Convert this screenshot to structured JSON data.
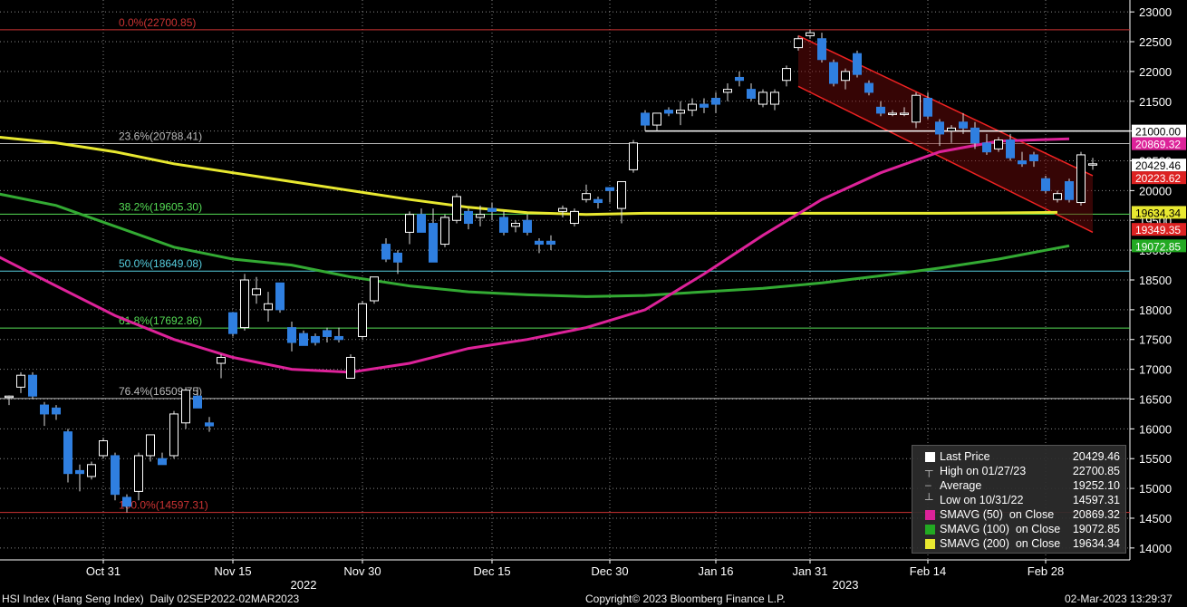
{
  "chart_data": {
    "type": "candlestick",
    "ylim": [
      13800,
      23200
    ],
    "yticks": [
      14000,
      14500,
      15000,
      15500,
      16000,
      16500,
      17000,
      17500,
      18000,
      18500,
      19000,
      19500,
      20000,
      20500,
      21000,
      21500,
      22000,
      22500,
      23000
    ],
    "ytick_labels": [
      "14000",
      "14500",
      "15000",
      "15500",
      "16000",
      "16500",
      "17000",
      "17500",
      "18000",
      "18500",
      "19000",
      "19500",
      "20000",
      "20500",
      "21000",
      "21500",
      "22000",
      "22500",
      "23000"
    ],
    "x_ticks": [
      {
        "label": "Oct 31",
        "i": 8
      },
      {
        "label": "Nov 15",
        "i": 19
      },
      {
        "label": "Nov 30",
        "i": 30
      },
      {
        "label": "Dec 15",
        "i": 41
      },
      {
        "label": "Dec 30",
        "i": 51
      },
      {
        "label": "Jan 16",
        "i": 60
      },
      {
        "label": "Jan 31",
        "i": 68
      },
      {
        "label": "Feb 14",
        "i": 78
      },
      {
        "label": "Feb 28",
        "i": 88
      }
    ],
    "x_year_labels": [
      {
        "label": "2022",
        "i": 25
      },
      {
        "label": "2023",
        "i": 71
      }
    ],
    "n_slots": 92,
    "candles": [
      {
        "o": 16550,
        "h": 16560,
        "l": 16400,
        "c": 16540,
        "up": true
      },
      {
        "o": 16700,
        "h": 16950,
        "l": 16600,
        "c": 16900,
        "up": true
      },
      {
        "o": 16900,
        "h": 16950,
        "l": 16500,
        "c": 16550,
        "up": false
      },
      {
        "o": 16400,
        "h": 16450,
        "l": 16050,
        "c": 16250,
        "up": false
      },
      {
        "o": 16350,
        "h": 16400,
        "l": 16150,
        "c": 16250,
        "up": false
      },
      {
        "o": 15950,
        "h": 16000,
        "l": 15100,
        "c": 15250,
        "up": false
      },
      {
        "o": 15300,
        "h": 15400,
        "l": 14950,
        "c": 15250,
        "up": false
      },
      {
        "o": 15200,
        "h": 15450,
        "l": 15150,
        "c": 15400,
        "up": true
      },
      {
        "o": 15550,
        "h": 15850,
        "l": 15500,
        "c": 15800,
        "up": true
      },
      {
        "o": 15550,
        "h": 15600,
        "l": 14800,
        "c": 14900,
        "up": false
      },
      {
        "o": 14850,
        "h": 14900,
        "l": 14597,
        "c": 14700,
        "up": false
      },
      {
        "o": 14950,
        "h": 15600,
        "l": 14800,
        "c": 15550,
        "up": true
      },
      {
        "o": 15550,
        "h": 15900,
        "l": 15450,
        "c": 15900,
        "up": true
      },
      {
        "o": 15500,
        "h": 15600,
        "l": 15400,
        "c": 15400,
        "up": false
      },
      {
        "o": 15550,
        "h": 16300,
        "l": 15500,
        "c": 16250,
        "up": true
      },
      {
        "o": 16100,
        "h": 16700,
        "l": 16000,
        "c": 16650,
        "up": true
      },
      {
        "o": 16550,
        "h": 16700,
        "l": 16350,
        "c": 16350,
        "up": false
      },
      {
        "o": 16100,
        "h": 16200,
        "l": 15950,
        "c": 16050,
        "up": false
      },
      {
        "o": 17100,
        "h": 17250,
        "l": 16850,
        "c": 17200,
        "up": true
      },
      {
        "o": 17950,
        "h": 17950,
        "l": 17550,
        "c": 17600,
        "up": false
      },
      {
        "o": 17700,
        "h": 18600,
        "l": 17650,
        "c": 18500,
        "up": true
      },
      {
        "o": 18250,
        "h": 18550,
        "l": 18100,
        "c": 18350,
        "up": true
      },
      {
        "o": 18000,
        "h": 18300,
        "l": 17800,
        "c": 18100,
        "up": true
      },
      {
        "o": 18450,
        "h": 18450,
        "l": 17950,
        "c": 18000,
        "up": false
      },
      {
        "o": 17700,
        "h": 17800,
        "l": 17300,
        "c": 17450,
        "up": false
      },
      {
        "o": 17600,
        "h": 17650,
        "l": 17400,
        "c": 17400,
        "up": false
      },
      {
        "o": 17550,
        "h": 17600,
        "l": 17400,
        "c": 17450,
        "up": false
      },
      {
        "o": 17650,
        "h": 17700,
        "l": 17450,
        "c": 17550,
        "up": false
      },
      {
        "o": 17550,
        "h": 17700,
        "l": 17450,
        "c": 17500,
        "up": false
      },
      {
        "o": 16850,
        "h": 17250,
        "l": 16850,
        "c": 17200,
        "up": true
      },
      {
        "o": 17550,
        "h": 18150,
        "l": 17500,
        "c": 18100,
        "up": true
      },
      {
        "o": 18150,
        "h": 18550,
        "l": 18100,
        "c": 18550,
        "up": true
      },
      {
        "o": 19100,
        "h": 19200,
        "l": 18800,
        "c": 18850,
        "up": false
      },
      {
        "o": 18950,
        "h": 19000,
        "l": 18600,
        "c": 18800,
        "up": false
      },
      {
        "o": 19300,
        "h": 19650,
        "l": 19100,
        "c": 19600,
        "up": true
      },
      {
        "o": 19600,
        "h": 19700,
        "l": 19300,
        "c": 19300,
        "up": false
      },
      {
        "o": 19450,
        "h": 19700,
        "l": 18800,
        "c": 18800,
        "up": false
      },
      {
        "o": 19100,
        "h": 19600,
        "l": 19050,
        "c": 19550,
        "up": true
      },
      {
        "o": 19500,
        "h": 19950,
        "l": 19450,
        "c": 19900,
        "up": true
      },
      {
        "o": 19650,
        "h": 19700,
        "l": 19350,
        "c": 19450,
        "up": false
      },
      {
        "o": 19550,
        "h": 19750,
        "l": 19400,
        "c": 19600,
        "up": true
      },
      {
        "o": 19650,
        "h": 19800,
        "l": 19500,
        "c": 19700,
        "up": false
      },
      {
        "o": 19550,
        "h": 19650,
        "l": 19250,
        "c": 19300,
        "up": false
      },
      {
        "o": 19400,
        "h": 19500,
        "l": 19300,
        "c": 19450,
        "up": true
      },
      {
        "o": 19500,
        "h": 19600,
        "l": 19250,
        "c": 19300,
        "up": false
      },
      {
        "o": 19150,
        "h": 19200,
        "l": 18950,
        "c": 19100,
        "up": false
      },
      {
        "o": 19150,
        "h": 19250,
        "l": 19000,
        "c": 19100,
        "up": false
      },
      {
        "o": 19650,
        "h": 19750,
        "l": 19550,
        "c": 19700,
        "up": true
      },
      {
        "o": 19450,
        "h": 19700,
        "l": 19400,
        "c": 19650,
        "up": true
      },
      {
        "o": 19850,
        "h": 20100,
        "l": 19800,
        "c": 19950,
        "up": true
      },
      {
        "o": 19850,
        "h": 19900,
        "l": 19700,
        "c": 19800,
        "up": false
      },
      {
        "o": 20000,
        "h": 20050,
        "l": 19800,
        "c": 20050,
        "up": false
      },
      {
        "o": 19700,
        "h": 20150,
        "l": 19450,
        "c": 20150,
        "up": true
      },
      {
        "o": 20350,
        "h": 20850,
        "l": 20300,
        "c": 20800,
        "up": true
      },
      {
        "o": 21300,
        "h": 21350,
        "l": 21000,
        "c": 21100,
        "up": false
      },
      {
        "o": 21100,
        "h": 21300,
        "l": 21000,
        "c": 21300,
        "up": true
      },
      {
        "o": 21300,
        "h": 21400,
        "l": 21250,
        "c": 21350,
        "up": false
      },
      {
        "o": 21300,
        "h": 21500,
        "l": 21100,
        "c": 21350,
        "up": true
      },
      {
        "o": 21350,
        "h": 21550,
        "l": 21250,
        "c": 21450,
        "up": true
      },
      {
        "o": 21450,
        "h": 21550,
        "l": 21300,
        "c": 21400,
        "up": false
      },
      {
        "o": 21550,
        "h": 21650,
        "l": 21300,
        "c": 21450,
        "up": false
      },
      {
        "o": 21650,
        "h": 21800,
        "l": 21500,
        "c": 21700,
        "up": true
      },
      {
        "o": 21900,
        "h": 22000,
        "l": 21750,
        "c": 21850,
        "up": false
      },
      {
        "o": 21700,
        "h": 21800,
        "l": 21500,
        "c": 21550,
        "up": false
      },
      {
        "o": 21450,
        "h": 21700,
        "l": 21400,
        "c": 21650,
        "up": true
      },
      {
        "o": 21450,
        "h": 21700,
        "l": 21350,
        "c": 21650,
        "up": true
      },
      {
        "o": 21850,
        "h": 22100,
        "l": 21750,
        "c": 22050,
        "up": true
      },
      {
        "o": 22400,
        "h": 22600,
        "l": 22350,
        "c": 22550,
        "up": true
      },
      {
        "o": 22600,
        "h": 22700.85,
        "l": 22550,
        "c": 22650,
        "up": true
      },
      {
        "o": 22550,
        "h": 22650,
        "l": 22150,
        "c": 22200,
        "up": false
      },
      {
        "o": 22150,
        "h": 22200,
        "l": 21750,
        "c": 21800,
        "up": false
      },
      {
        "o": 21850,
        "h": 22050,
        "l": 21700,
        "c": 22000,
        "up": true
      },
      {
        "o": 22300,
        "h": 22350,
        "l": 21900,
        "c": 21950,
        "up": false
      },
      {
        "o": 21800,
        "h": 21850,
        "l": 21600,
        "c": 21650,
        "up": false
      },
      {
        "o": 21400,
        "h": 21500,
        "l": 21250,
        "c": 21300,
        "up": false
      },
      {
        "o": 21300,
        "h": 21350,
        "l": 21250,
        "c": 21300,
        "up": true
      },
      {
        "o": 21300,
        "h": 21400,
        "l": 21250,
        "c": 21300,
        "up": true
      },
      {
        "o": 21600,
        "h": 21650,
        "l": 21050,
        "c": 21150,
        "up": true
      },
      {
        "o": 21550,
        "h": 21650,
        "l": 21200,
        "c": 21250,
        "up": false
      },
      {
        "o": 21150,
        "h": 21200,
        "l": 20750,
        "c": 20950,
        "up": false
      },
      {
        "o": 21000,
        "h": 21100,
        "l": 20800,
        "c": 21050,
        "up": true
      },
      {
        "o": 21150,
        "h": 21300,
        "l": 20950,
        "c": 21050,
        "up": false
      },
      {
        "o": 21050,
        "h": 21150,
        "l": 20700,
        "c": 20800,
        "up": false
      },
      {
        "o": 20800,
        "h": 20950,
        "l": 20600,
        "c": 20650,
        "up": false
      },
      {
        "o": 20850,
        "h": 20900,
        "l": 20650,
        "c": 20700,
        "up": true
      },
      {
        "o": 20850,
        "h": 20950,
        "l": 20500,
        "c": 20550,
        "up": false
      },
      {
        "o": 20500,
        "h": 20650,
        "l": 20400,
        "c": 20450,
        "up": false
      },
      {
        "o": 20500,
        "h": 20650,
        "l": 20400,
        "c": 20600,
        "up": false
      },
      {
        "o": 20200,
        "h": 20250,
        "l": 19950,
        "c": 20000,
        "up": false
      },
      {
        "o": 19950,
        "h": 20000,
        "l": 19800,
        "c": 19850,
        "up": true
      },
      {
        "o": 20150,
        "h": 20200,
        "l": 19800,
        "c": 19850,
        "up": false
      },
      {
        "o": 19800,
        "h": 20650,
        "l": 19750,
        "c": 20600,
        "up": true
      },
      {
        "o": 20450,
        "h": 20550,
        "l": 20350,
        "c": 20429.46,
        "up": true
      }
    ],
    "fib_levels": [
      {
        "label": "0.0%(22700.85)",
        "value": 22700.85,
        "color": "#cc3333"
      },
      {
        "label": "23.6%(20788.41)",
        "value": 20788.41,
        "color": "#bbbbbb"
      },
      {
        "label": "38.2%(19605.30)",
        "value": 19605.3,
        "color": "#55dd55"
      },
      {
        "label": "50.0%(18649.08)",
        "value": 18649.08,
        "color": "#55ccdd"
      },
      {
        "label": "61.8%(17692.86)",
        "value": 17692.86,
        "color": "#55dd55"
      },
      {
        "label": "76.4%(16509.75)",
        "value": 16509.75,
        "color": "#bbbbbb"
      },
      {
        "label": "100.0%(14597.31)",
        "value": 14597.31,
        "color": "#cc3333"
      }
    ],
    "sma200": {
      "color": "#e8e830",
      "points": [
        [
          -1,
          20900
        ],
        [
          4,
          20800
        ],
        [
          9,
          20650
        ],
        [
          14,
          20450
        ],
        [
          19,
          20300
        ],
        [
          24,
          20150
        ],
        [
          29,
          20000
        ],
        [
          34,
          19850
        ],
        [
          39,
          19720
        ],
        [
          44,
          19630
        ],
        [
          49,
          19600
        ],
        [
          54,
          19620
        ],
        [
          59,
          19620
        ],
        [
          64,
          19620
        ],
        [
          69,
          19620
        ],
        [
          74,
          19620
        ],
        [
          79,
          19620
        ],
        [
          84,
          19625
        ],
        [
          89,
          19634.34
        ]
      ]
    },
    "sma100": {
      "color": "#33aa33",
      "points": [
        [
          -1,
          19950
        ],
        [
          4,
          19750
        ],
        [
          9,
          19400
        ],
        [
          14,
          19050
        ],
        [
          19,
          18850
        ],
        [
          24,
          18750
        ],
        [
          29,
          18550
        ],
        [
          34,
          18400
        ],
        [
          39,
          18300
        ],
        [
          44,
          18250
        ],
        [
          49,
          18220
        ],
        [
          54,
          18240
        ],
        [
          59,
          18300
        ],
        [
          64,
          18360
        ],
        [
          69,
          18450
        ],
        [
          74,
          18570
        ],
        [
          79,
          18700
        ],
        [
          84,
          18850
        ],
        [
          90,
          19072.85
        ]
      ]
    },
    "sma50": {
      "color": "#dd2299",
      "points": [
        [
          -1,
          18900
        ],
        [
          4,
          18400
        ],
        [
          9,
          17900
        ],
        [
          14,
          17500
        ],
        [
          19,
          17200
        ],
        [
          24,
          17000
        ],
        [
          29,
          16950
        ],
        [
          34,
          17100
        ],
        [
          39,
          17350
        ],
        [
          44,
          17500
        ],
        [
          49,
          17700
        ],
        [
          54,
          18000
        ],
        [
          59,
          18600
        ],
        [
          64,
          19250
        ],
        [
          69,
          19850
        ],
        [
          74,
          20300
        ],
        [
          79,
          20650
        ],
        [
          84,
          20830
        ],
        [
          90,
          20869.32
        ]
      ]
    },
    "channel": {
      "upper": [
        [
          67,
          22600
        ],
        [
          92,
          20250
        ]
      ],
      "lower": [
        [
          67,
          21750
        ],
        [
          92,
          19300
        ]
      ]
    },
    "hline_21000": {
      "value": 21000,
      "color": "#ffffff",
      "from_i": 54
    },
    "right_labels": [
      {
        "text": "21000.00",
        "value": 21000.0,
        "bg": "#ffffff",
        "fg": "#000000"
      },
      {
        "text": "20869.32",
        "value": 20869.32,
        "bg": "#dd2299",
        "fg": "#ffffff"
      },
      {
        "text": "20429.46",
        "value": 20429.46,
        "bg": "#ffffff",
        "fg": "#000000"
      },
      {
        "text": "20223.62",
        "value": 20223.62,
        "bg": "#dd2222",
        "fg": "#ffffff"
      },
      {
        "text": "19634.34",
        "value": 19634.34,
        "bg": "#e8e830",
        "fg": "#000000"
      },
      {
        "text": "19349.35",
        "value": 19349.35,
        "bg": "#dd2222",
        "fg": "#ffffff"
      },
      {
        "text": "19072.85",
        "value": 19072.85,
        "bg": "#22aa22",
        "fg": "#ffffff"
      }
    ],
    "colors": {
      "up": "#000000",
      "up_stroke": "#ffffff",
      "down": "#2f7fe0",
      "grid": "#888888"
    }
  },
  "legend": {
    "last_price": {
      "label": "Last Price",
      "value": "20429.46"
    },
    "high": {
      "label": "High on 01/27/23",
      "value": "22700.85"
    },
    "average": {
      "label": "Average",
      "value": "19252.10"
    },
    "low": {
      "label": "Low on 10/31/22",
      "value": "14597.31"
    },
    "sma50": {
      "label": "SMAVG (50)  on Close",
      "value": "20869.32",
      "color": "#dd2299"
    },
    "sma100": {
      "label": "SMAVG (100)  on Close",
      "value": "19072.85",
      "color": "#22aa22"
    },
    "sma200": {
      "label": "SMAVG (200)  on Close",
      "value": "19634.34",
      "color": "#e8e830"
    }
  },
  "footer": {
    "left": "HSI Index (Hang Seng Index)  Daily 02SEP2022-02MAR2023",
    "center": "Copyright© 2023 Bloomberg Finance L.P.",
    "right": "02-Mar-2023 13:29:37"
  }
}
